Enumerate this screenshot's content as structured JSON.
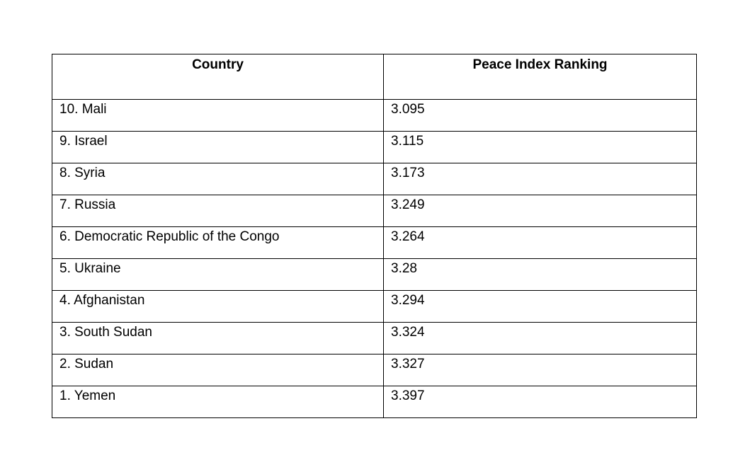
{
  "table": {
    "headers": [
      "Country",
      "Peace Index Ranking"
    ],
    "rows": [
      {
        "country": "10. Mali",
        "score": "3.095"
      },
      {
        "country": "9. Israel",
        "score": "3.115"
      },
      {
        "country": "8. Syria",
        "score": "3.173"
      },
      {
        "country": "7. Russia",
        "score": "3.249"
      },
      {
        "country": "6. Democratic Republic of the Congo",
        "score": "3.264"
      },
      {
        "country": "5. Ukraine",
        "score": "3.28"
      },
      {
        "country": "4. Afghanistan",
        "score": "3.294"
      },
      {
        "country": "3. South Sudan",
        "score": "3.324"
      },
      {
        "country": "2. Sudan",
        "score": "3.327"
      },
      {
        "country": "1. Yemen",
        "score": "3.397"
      }
    ]
  }
}
